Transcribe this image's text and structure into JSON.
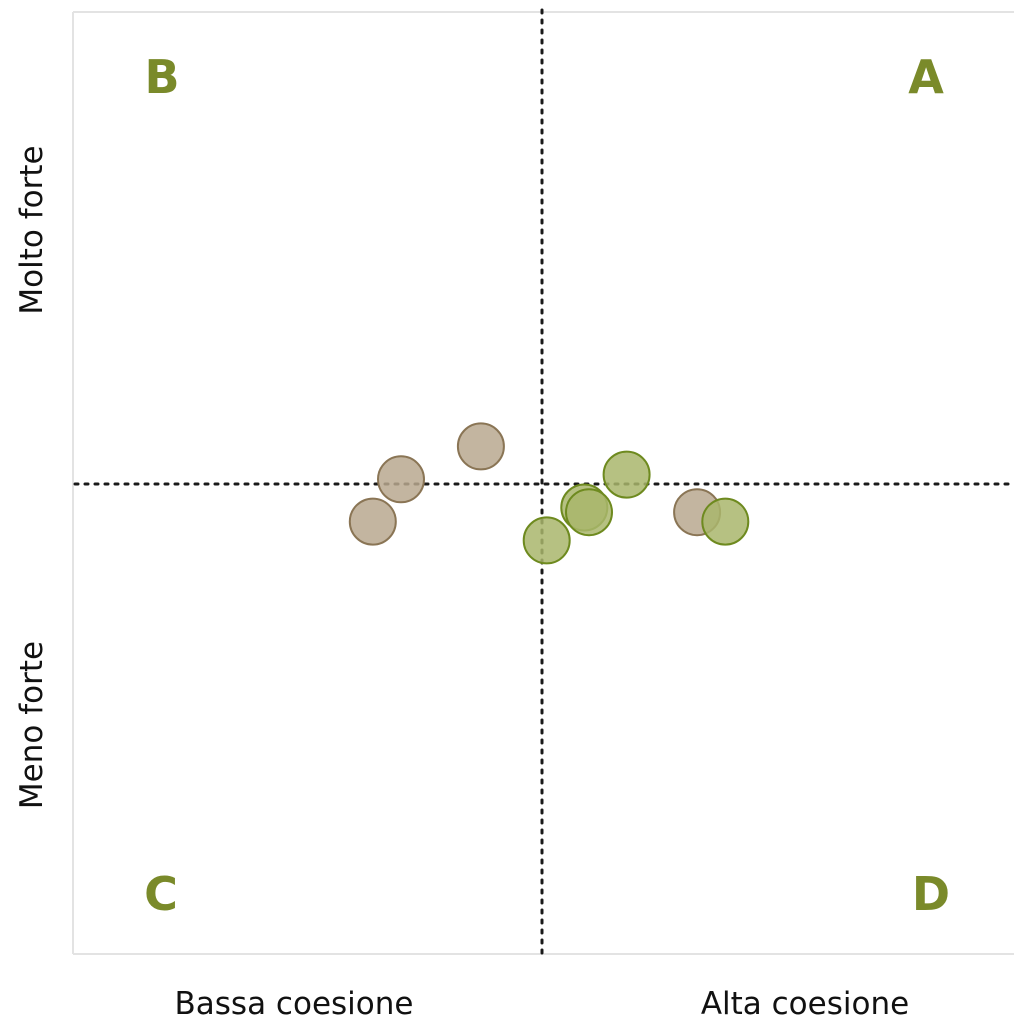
{
  "chart_data": {
    "type": "scatter",
    "quadrant_labels": [
      "B",
      "A",
      "C",
      "D"
    ],
    "x_axis_labels": [
      "Bassa coesione",
      "Alta coesione"
    ],
    "y_axis_labels": [
      "Molto forte",
      "Meno forte"
    ],
    "xlim": [
      -1,
      1
    ],
    "ylim": [
      -1,
      1
    ],
    "grid": false,
    "colors": {
      "quadrant_label": "#7a8a2a",
      "series_brown_fill": "#b8a88f",
      "series_brown_stroke": "#8a7555",
      "series_green_fill": "#a9b66c",
      "series_green_stroke": "#6e8a1f",
      "midline": "#1a1a1a",
      "frame": "#e3e3e3"
    },
    "series": [
      {
        "color_key": "brown",
        "points": [
          {
            "x": -0.13,
            "y": 0.08
          },
          {
            "x": -0.3,
            "y": 0.01
          },
          {
            "x": -0.36,
            "y": -0.08
          },
          {
            "x": 0.33,
            "y": -0.06
          }
        ]
      },
      {
        "color_key": "green",
        "points": [
          {
            "x": 0.18,
            "y": 0.02
          },
          {
            "x": 0.09,
            "y": -0.05
          },
          {
            "x": 0.1,
            "y": -0.06
          },
          {
            "x": 0.39,
            "y": -0.08
          },
          {
            "x": 0.01,
            "y": -0.12
          }
        ]
      }
    ]
  }
}
